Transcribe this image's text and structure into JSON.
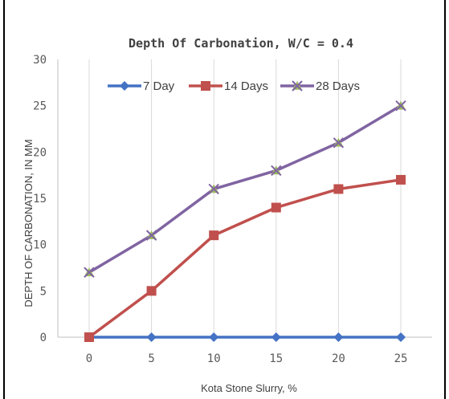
{
  "chart_data": {
    "type": "line",
    "title": "Depth Of Carbonation, W/C = 0.4",
    "xlabel": "Kota Stone Slurry, %",
    "ylabel": "DEPTH OF CARBONATION, IN MM",
    "x": [
      0,
      5,
      10,
      15,
      20,
      25
    ],
    "ylim": [
      0,
      30
    ],
    "yticks": [
      0,
      5,
      10,
      15,
      20,
      25,
      30
    ],
    "grid": "vertical",
    "legend_position": "top",
    "series": [
      {
        "name": "7 Day",
        "values": [
          0,
          0,
          0,
          0,
          0,
          0
        ],
        "color": "#4472c4",
        "marker": "diamond"
      },
      {
        "name": "14 Days",
        "values": [
          0,
          5,
          11,
          14,
          16,
          17
        ],
        "color": "#c0504d",
        "marker": "square"
      },
      {
        "name": "28 Days",
        "values": [
          7,
          11,
          16,
          18,
          21,
          25
        ],
        "color": "#8064a2",
        "marker": "x",
        "marker_color": "#9bbb59"
      }
    ]
  }
}
